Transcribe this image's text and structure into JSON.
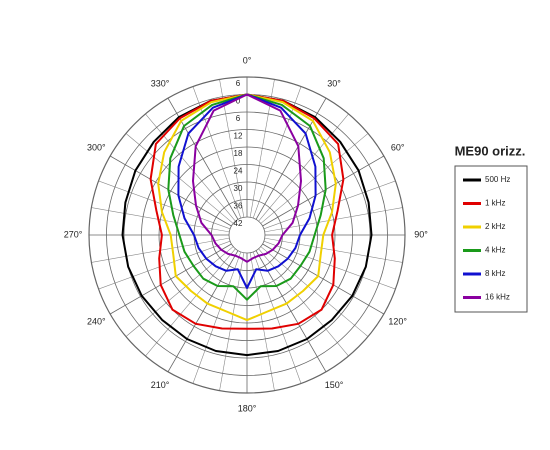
{
  "chart_data": {
    "type": "polar",
    "legend_title": "ME90 orizz.",
    "x": [
      0,
      15,
      30,
      45,
      60,
      75,
      90,
      105,
      120,
      135,
      150,
      165,
      180,
      195,
      210,
      225,
      240,
      255,
      270,
      285,
      300,
      315,
      330,
      345
    ],
    "xticks": [
      {
        "value": 0,
        "label": "0°"
      },
      {
        "value": 30,
        "label": "30°"
      },
      {
        "value": 60,
        "label": "60°"
      },
      {
        "value": 90,
        "label": "90°"
      },
      {
        "value": 120,
        "label": "120°"
      },
      {
        "value": 150,
        "label": "150°"
      },
      {
        "value": 180,
        "label": "180°"
      },
      {
        "value": 210,
        "label": "210°"
      },
      {
        "value": 240,
        "label": "240°"
      },
      {
        "value": 270,
        "label": "270°"
      },
      {
        "value": 300,
        "label": "300°"
      },
      {
        "value": 330,
        "label": "330°"
      }
    ],
    "xminorticks": [
      10,
      20,
      40,
      50,
      70,
      80,
      100,
      110,
      130,
      140,
      160,
      170,
      190,
      200,
      220,
      230,
      250,
      260,
      280,
      290,
      310,
      320,
      340,
      350
    ],
    "ylim": [
      -42,
      6
    ],
    "yticks": [
      6,
      0,
      {
        "value": -6,
        "label": "6"
      },
      {
        "value": -12,
        "label": "12"
      },
      {
        "value": -18,
        "label": "18"
      },
      {
        "value": -24,
        "label": "24"
      },
      {
        "value": -30,
        "label": "30"
      },
      {
        "value": -36,
        "label": "36"
      },
      {
        "value": -42,
        "label": "42"
      }
    ],
    "grid": true,
    "series": [
      {
        "name": "500 Hz",
        "color": "#000000",
        "values": [
          0,
          -0.5,
          -1.5,
          -3,
          -4,
          -5,
          -5.5,
          -6,
          -6.5,
          -7,
          -7,
          -7,
          -7,
          -7,
          -7,
          -7,
          -6.5,
          -6,
          -5.5,
          -5,
          -4,
          -3,
          -1.5,
          -0.5
        ]
      },
      {
        "name": "1 kHz",
        "color": "#e00000",
        "values": [
          0,
          -0.5,
          -2,
          -4,
          -10,
          -16,
          -19,
          -17,
          -14,
          -12,
          -13,
          -15,
          -16,
          -15,
          -13,
          -12,
          -14,
          -17,
          -19,
          -16,
          -10,
          -4,
          -2,
          -0.5
        ]
      },
      {
        "name": "2 kHz",
        "color": "#f0d000",
        "values": [
          0,
          -1,
          -3,
          -8,
          -13,
          -18,
          -22,
          -22,
          -20,
          -21,
          -21,
          -21,
          -19,
          -21,
          -21,
          -21,
          -20,
          -22,
          -22,
          -18,
          -13,
          -8,
          -3,
          -1
        ]
      },
      {
        "name": "4 kHz",
        "color": "#1a9a1a",
        "values": [
          0,
          -2,
          -5,
          -11,
          -17,
          -22,
          -25,
          -26,
          -27,
          -27,
          -28,
          -30,
          -26,
          -30,
          -28,
          -27,
          -27,
          -26,
          -25,
          -22,
          -17,
          -11,
          -5,
          -2
        ]
      },
      {
        "name": "8 kHz",
        "color": "#1010d0",
        "values": [
          0,
          -3,
          -8,
          -15,
          -21,
          -26,
          -30,
          -31,
          -32,
          -33,
          -34,
          -36,
          -30,
          -36,
          -34,
          -33,
          -32,
          -31,
          -30,
          -26,
          -21,
          -15,
          -8,
          -3
        ]
      },
      {
        "name": "16 kHz",
        "color": "#8a00a0",
        "values": [
          0,
          -4,
          -13,
          -22,
          -28,
          -32,
          -36,
          -37,
          -38,
          -39,
          -40,
          -40,
          -39,
          -40,
          -40,
          -39,
          -38,
          -37,
          -36,
          -32,
          -28,
          -22,
          -13,
          -4
        ]
      }
    ]
  }
}
